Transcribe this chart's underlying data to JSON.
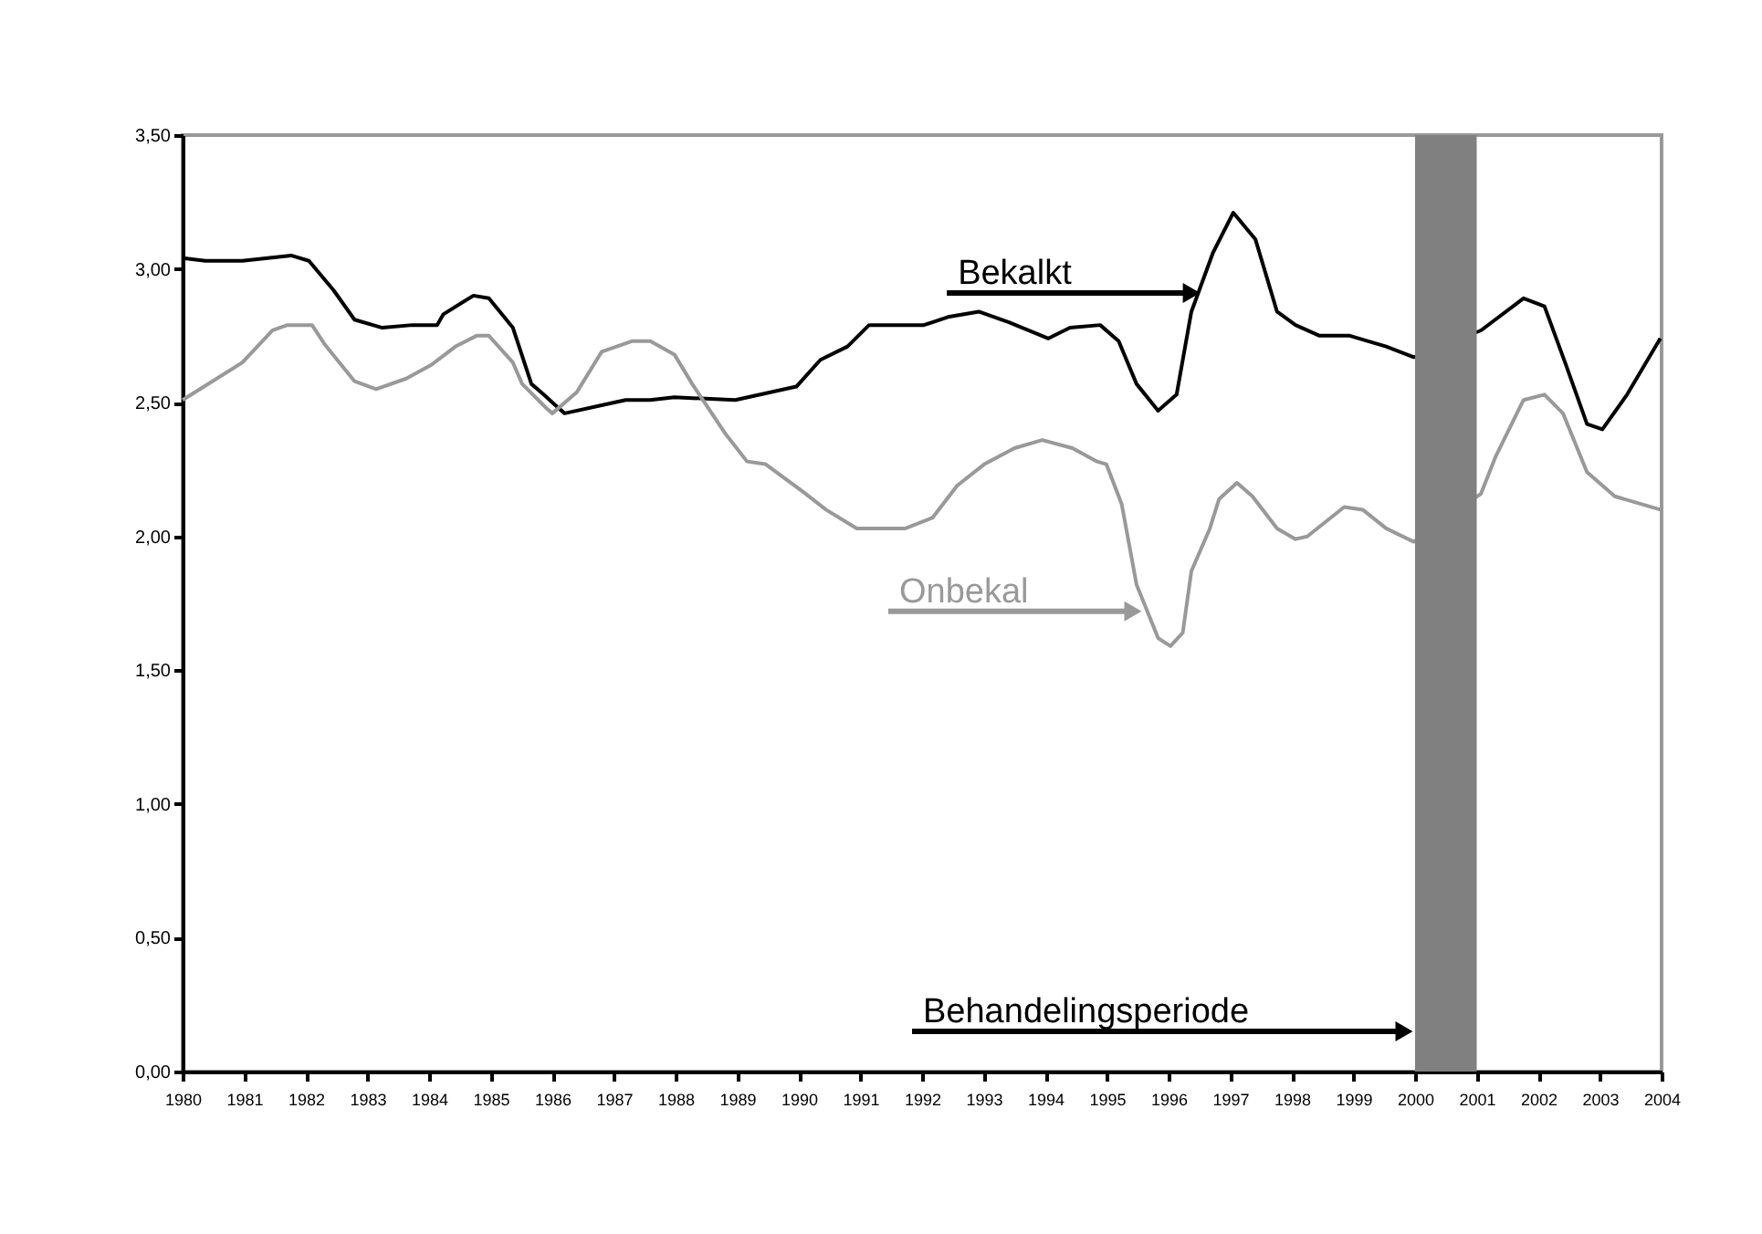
{
  "chart_data": {
    "type": "line",
    "series": [
      {
        "color": "#000000",
        "x": [
          1980,
          1980.37,
          1980.97,
          1981.76,
          1982.05,
          1982.45,
          1982.79,
          1983.24,
          1983.73,
          1984.13,
          1984.23,
          1984.72,
          1984.97,
          1985.36,
          1985.66,
          1985.86,
          1986.05,
          1986.2,
          1986.8,
          1987.19,
          1987.59,
          1987.98,
          1988.97,
          1989.96,
          1990.35,
          1990.79,
          1991.14,
          1992.03,
          1992.42,
          1992.92,
          1993.41,
          1994.05,
          1994.4,
          1994.89,
          1995.19,
          1995.48,
          1995.83,
          1996.13,
          1996.37,
          1996.72,
          1997.05,
          1997.41,
          1997.76,
          1998.06,
          1998.45,
          1998.94,
          1999.53,
          1999.98,
          2001.07,
          2001.76,
          2002.1,
          2002.45,
          2002.79,
          2003.04,
          2003.44,
          2003.98
        ],
        "values": [
          3.04,
          3.03,
          3.03,
          3.05,
          3.03,
          2.92,
          2.81,
          2.78,
          2.79,
          2.79,
          2.83,
          2.9,
          2.89,
          2.78,
          2.57,
          2.53,
          2.49,
          2.46,
          2.49,
          2.51,
          2.51,
          2.52,
          2.51,
          2.56,
          2.66,
          2.71,
          2.79,
          2.79,
          2.82,
          2.84,
          2.8,
          2.74,
          2.78,
          2.79,
          2.73,
          2.57,
          2.47,
          2.53,
          2.84,
          3.06,
          3.21,
          3.11,
          2.84,
          2.79,
          2.75,
          2.75,
          2.71,
          2.67,
          2.77,
          2.89,
          2.86,
          2.64,
          2.42,
          2.4,
          2.53,
          2.74
        ]
      },
      {
        "color": "#999999",
        "x": [
          1980,
          1980.97,
          1981.46,
          1981.7,
          1982.1,
          1982.3,
          1982.79,
          1983.14,
          1983.63,
          1984.03,
          1984.43,
          1984.77,
          1984.97,
          1985.36,
          1985.51,
          1985.9,
          1986.0,
          1986.4,
          1986.8,
          1987.3,
          1987.59,
          1987.98,
          1988.27,
          1988.82,
          1989.16,
          1989.46,
          1990.05,
          1990.44,
          1990.94,
          1991.73,
          1992.17,
          1992.57,
          1993.01,
          1993.5,
          1993.95,
          1994.44,
          1994.84,
          1994.99,
          1995.24,
          1995.48,
          1995.83,
          1996.03,
          1996.23,
          1996.37,
          1996.67,
          1996.82,
          1997.11,
          1997.36,
          1997.76,
          1998.06,
          1998.25,
          1998.85,
          1999.15,
          1999.53,
          1999.98,
          2001.07,
          2001.31,
          2001.76,
          2002.1,
          2002.4,
          2002.79,
          2003.24,
          2003.98
        ],
        "values": [
          2.51,
          2.65,
          2.77,
          2.79,
          2.79,
          2.72,
          2.58,
          2.55,
          2.59,
          2.64,
          2.71,
          2.75,
          2.75,
          2.65,
          2.57,
          2.48,
          2.46,
          2.54,
          2.69,
          2.73,
          2.73,
          2.68,
          2.57,
          2.38,
          2.28,
          2.27,
          2.17,
          2.1,
          2.03,
          2.03,
          2.07,
          2.19,
          2.27,
          2.33,
          2.36,
          2.33,
          2.28,
          2.27,
          2.12,
          1.82,
          1.62,
          1.59,
          1.64,
          1.87,
          2.03,
          2.14,
          2.2,
          2.15,
          2.03,
          1.99,
          2.0,
          2.11,
          2.1,
          2.03,
          1.98,
          2.16,
          2.3,
          2.51,
          2.53,
          2.46,
          2.24,
          2.15,
          2.1
        ]
      }
    ],
    "xlim": [
      1980,
      2004
    ],
    "xticks": [
      1980,
      1981,
      1982,
      1983,
      1984,
      1985,
      1986,
      1987,
      1988,
      1989,
      1990,
      1991,
      1992,
      1993,
      1994,
      1995,
      1996,
      1997,
      1998,
      1999,
      2000,
      2001,
      2002,
      2003,
      2004
    ],
    "ylim": [
      0,
      3.5
    ],
    "yticks": [
      {
        "value": 0,
        "label": "0,00"
      },
      {
        "value": 0.5,
        "label": "0,50"
      },
      {
        "value": 1,
        "label": "1,00"
      },
      {
        "value": 1.5,
        "label": "1,50"
      },
      {
        "value": 2,
        "label": "2,00"
      },
      {
        "value": 2.5,
        "label": "2,50"
      },
      {
        "value": 3,
        "label": "3,00"
      },
      {
        "value": 3.5,
        "label": "3,50"
      }
    ],
    "bands": [
      {
        "axis": "x",
        "from": 2000,
        "to": 2001,
        "color": "#808080"
      }
    ],
    "annotations": [
      {
        "text": "Bekalkt",
        "x": 1996.55,
        "y": 2.91
      },
      {
        "text": "Onbekal",
        "x": 1995.6,
        "y": 1.72
      },
      {
        "text": "Behandelingsperiode",
        "x": 2000,
        "y": 0.15
      }
    ],
    "grid": false,
    "legend": false,
    "line_style": "solid",
    "marker": "none"
  }
}
